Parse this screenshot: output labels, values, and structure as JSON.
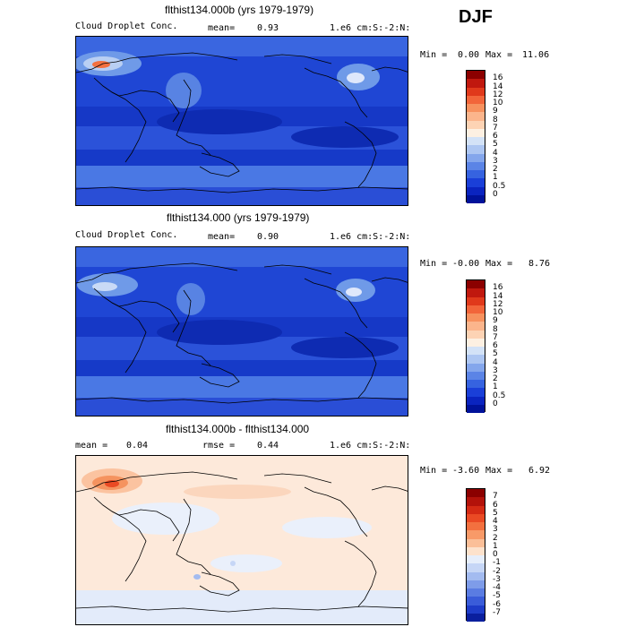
{
  "season": "DJF",
  "panels": [
    {
      "title": "flthist134.000b (yrs 1979-1979)",
      "left_label": "Cloud Droplet Conc.",
      "mid_label": "mean=",
      "mid_value": "0.93",
      "units": "1.e6 cm:S:-2:N:",
      "min_label": "Min =",
      "min_value": "0.00",
      "max_label": "Max =",
      "max_value": "11.06",
      "colorbar_levels": [
        "16",
        "14",
        "12",
        "10",
        "9",
        "8",
        "7",
        "6",
        "5",
        "4",
        "3",
        "2",
        "1",
        "0.5",
        "0"
      ],
      "colors": [
        "#8b0000",
        "#c0180e",
        "#e0391b",
        "#f2653a",
        "#f7915e",
        "#fbb58c",
        "#fdd3b4",
        "#fdf0e2",
        "#d3e2f7",
        "#adc6f2",
        "#84a6ec",
        "#5b84e6",
        "#3663e0",
        "#1a3fd8",
        "#0a24c0",
        "#00129a"
      ]
    },
    {
      "title": "flthist134.000 (yrs 1979-1979)",
      "left_label": "Cloud Droplet Conc.",
      "mid_label": "mean=",
      "mid_value": "0.90",
      "units": "1.e6 cm:S:-2:N:",
      "min_label": "Min =",
      "min_value": "-0.00",
      "max_label": "Max =",
      "max_value": "8.76",
      "colorbar_levels": [
        "16",
        "14",
        "12",
        "10",
        "9",
        "8",
        "7",
        "6",
        "5",
        "4",
        "3",
        "2",
        "1",
        "0.5",
        "0"
      ],
      "colors": [
        "#8b0000",
        "#c0180e",
        "#e0391b",
        "#f2653a",
        "#f7915e",
        "#fbb58c",
        "#fdd3b4",
        "#fdf0e2",
        "#d3e2f7",
        "#adc6f2",
        "#84a6ec",
        "#5b84e6",
        "#3663e0",
        "#1a3fd8",
        "#0a24c0",
        "#00129a"
      ]
    },
    {
      "title": "flthist134.000b - flthist134.000",
      "left_label": "mean =",
      "left_value": "0.04",
      "mid_label": "rmse =",
      "mid_value": "0.44",
      "units": "1.e6 cm:S:-2:N:",
      "min_label": "Min =",
      "min_value": "-3.60",
      "max_label": "Max =",
      "max_value": "6.92",
      "colorbar_levels": [
        "7",
        "6",
        "5",
        "4",
        "3",
        "2",
        "1",
        "0",
        "-1",
        "-2",
        "-3",
        "-4",
        "-5",
        "-6",
        "-7"
      ],
      "colors": [
        "#8b0000",
        "#b3120a",
        "#d42a14",
        "#ea4a24",
        "#f3703f",
        "#f89a68",
        "#fbbf98",
        "#fde2cc",
        "#e6eefb",
        "#c6d6f6",
        "#a3bbf0",
        "#7e9ce9",
        "#5a7ce2",
        "#3a5cd9",
        "#1e3cc8",
        "#0a1f9e"
      ]
    }
  ]
}
